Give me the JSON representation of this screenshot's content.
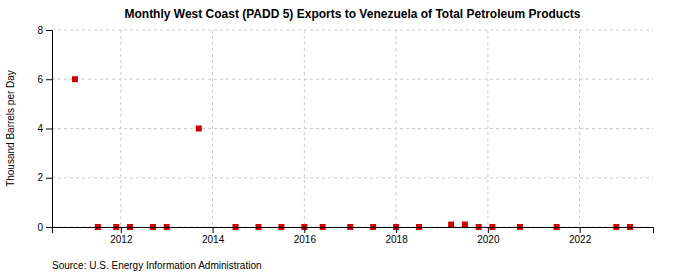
{
  "chart_data": {
    "type": "scatter",
    "title": "Monthly West Coast (PADD 5) Exports to Venezuela of Total Petroleum Products",
    "y_label": "Thousand Barrels per Day",
    "annotations": [
      "Source: U.S. Energy Information Administration"
    ],
    "color": "#cc0000",
    "marker": "square",
    "grid": true,
    "xlim": [
      2010.5,
      2023.6
    ],
    "xticks": [
      2012,
      2014,
      2016,
      2018,
      2020,
      2022
    ],
    "ylim": [
      0,
      8
    ],
    "yticks": [
      0,
      2,
      4,
      6,
      8
    ],
    "x": [
      2011.0,
      2011.5,
      2011.9,
      2012.2,
      2012.7,
      2013.0,
      2013.7,
      2014.5,
      2015.0,
      2015.5,
      2016.0,
      2016.4,
      2017.0,
      2017.5,
      2018.0,
      2018.5,
      2019.2,
      2019.5,
      2019.8,
      2020.1,
      2020.7,
      2021.5,
      2022.8,
      2023.1
    ],
    "values": [
      6.0,
      0.0,
      0.0,
      0.0,
      0.0,
      0.0,
      4.0,
      0.0,
      0.0,
      0.0,
      0.0,
      0.0,
      0.0,
      0.0,
      0.0,
      0.0,
      0.1,
      0.1,
      0.0,
      0.0,
      0.0,
      0.0,
      0.0,
      0.0
    ]
  }
}
